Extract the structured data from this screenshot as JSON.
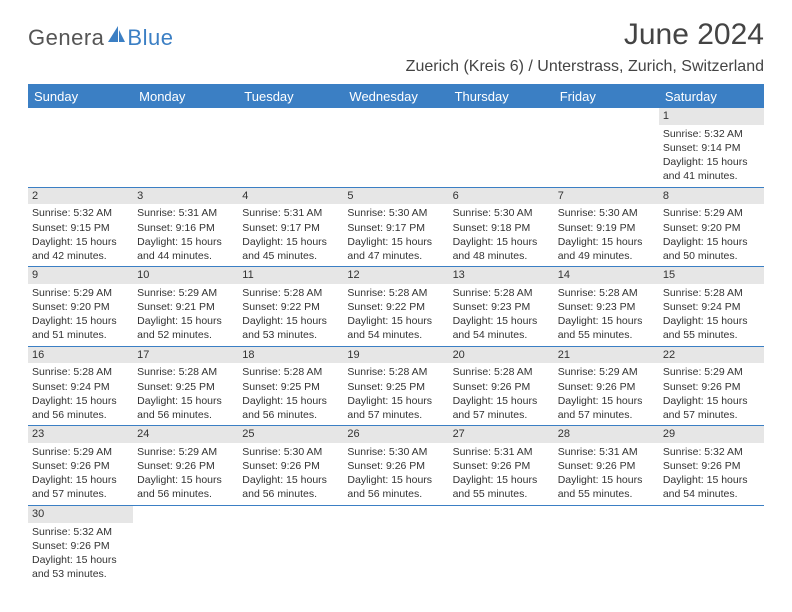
{
  "logo": {
    "text1": "Genera",
    "text2": "Blue",
    "sail_color": "#3b7fc4",
    "text1_color": "#555555"
  },
  "header": {
    "title": "June 2024",
    "location": "Zuerich (Kreis 6) / Unterstrass, Zurich, Switzerland"
  },
  "colors": {
    "header_bg": "#3b7fc4",
    "header_text": "#ffffff",
    "daynum_bg": "#e6e6e6",
    "border": "#3b7fc4",
    "body_text": "#333333"
  },
  "weekdays": [
    "Sunday",
    "Monday",
    "Tuesday",
    "Wednesday",
    "Thursday",
    "Friday",
    "Saturday"
  ],
  "labels": {
    "sunrise": "Sunrise:",
    "sunset": "Sunset:",
    "daylight": "Daylight:"
  },
  "weeks": [
    [
      null,
      null,
      null,
      null,
      null,
      null,
      {
        "n": "1",
        "sr": "5:32 AM",
        "ss": "9:14 PM",
        "dl1": "15 hours",
        "dl2": "and 41 minutes."
      }
    ],
    [
      {
        "n": "2",
        "sr": "5:32 AM",
        "ss": "9:15 PM",
        "dl1": "15 hours",
        "dl2": "and 42 minutes."
      },
      {
        "n": "3",
        "sr": "5:31 AM",
        "ss": "9:16 PM",
        "dl1": "15 hours",
        "dl2": "and 44 minutes."
      },
      {
        "n": "4",
        "sr": "5:31 AM",
        "ss": "9:17 PM",
        "dl1": "15 hours",
        "dl2": "and 45 minutes."
      },
      {
        "n": "5",
        "sr": "5:30 AM",
        "ss": "9:17 PM",
        "dl1": "15 hours",
        "dl2": "and 47 minutes."
      },
      {
        "n": "6",
        "sr": "5:30 AM",
        "ss": "9:18 PM",
        "dl1": "15 hours",
        "dl2": "and 48 minutes."
      },
      {
        "n": "7",
        "sr": "5:30 AM",
        "ss": "9:19 PM",
        "dl1": "15 hours",
        "dl2": "and 49 minutes."
      },
      {
        "n": "8",
        "sr": "5:29 AM",
        "ss": "9:20 PM",
        "dl1": "15 hours",
        "dl2": "and 50 minutes."
      }
    ],
    [
      {
        "n": "9",
        "sr": "5:29 AM",
        "ss": "9:20 PM",
        "dl1": "15 hours",
        "dl2": "and 51 minutes."
      },
      {
        "n": "10",
        "sr": "5:29 AM",
        "ss": "9:21 PM",
        "dl1": "15 hours",
        "dl2": "and 52 minutes."
      },
      {
        "n": "11",
        "sr": "5:28 AM",
        "ss": "9:22 PM",
        "dl1": "15 hours",
        "dl2": "and 53 minutes."
      },
      {
        "n": "12",
        "sr": "5:28 AM",
        "ss": "9:22 PM",
        "dl1": "15 hours",
        "dl2": "and 54 minutes."
      },
      {
        "n": "13",
        "sr": "5:28 AM",
        "ss": "9:23 PM",
        "dl1": "15 hours",
        "dl2": "and 54 minutes."
      },
      {
        "n": "14",
        "sr": "5:28 AM",
        "ss": "9:23 PM",
        "dl1": "15 hours",
        "dl2": "and 55 minutes."
      },
      {
        "n": "15",
        "sr": "5:28 AM",
        "ss": "9:24 PM",
        "dl1": "15 hours",
        "dl2": "and 55 minutes."
      }
    ],
    [
      {
        "n": "16",
        "sr": "5:28 AM",
        "ss": "9:24 PM",
        "dl1": "15 hours",
        "dl2": "and 56 minutes."
      },
      {
        "n": "17",
        "sr": "5:28 AM",
        "ss": "9:25 PM",
        "dl1": "15 hours",
        "dl2": "and 56 minutes."
      },
      {
        "n": "18",
        "sr": "5:28 AM",
        "ss": "9:25 PM",
        "dl1": "15 hours",
        "dl2": "and 56 minutes."
      },
      {
        "n": "19",
        "sr": "5:28 AM",
        "ss": "9:25 PM",
        "dl1": "15 hours",
        "dl2": "and 57 minutes."
      },
      {
        "n": "20",
        "sr": "5:28 AM",
        "ss": "9:26 PM",
        "dl1": "15 hours",
        "dl2": "and 57 minutes."
      },
      {
        "n": "21",
        "sr": "5:29 AM",
        "ss": "9:26 PM",
        "dl1": "15 hours",
        "dl2": "and 57 minutes."
      },
      {
        "n": "22",
        "sr": "5:29 AM",
        "ss": "9:26 PM",
        "dl1": "15 hours",
        "dl2": "and 57 minutes."
      }
    ],
    [
      {
        "n": "23",
        "sr": "5:29 AM",
        "ss": "9:26 PM",
        "dl1": "15 hours",
        "dl2": "and 57 minutes."
      },
      {
        "n": "24",
        "sr": "5:29 AM",
        "ss": "9:26 PM",
        "dl1": "15 hours",
        "dl2": "and 56 minutes."
      },
      {
        "n": "25",
        "sr": "5:30 AM",
        "ss": "9:26 PM",
        "dl1": "15 hours",
        "dl2": "and 56 minutes."
      },
      {
        "n": "26",
        "sr": "5:30 AM",
        "ss": "9:26 PM",
        "dl1": "15 hours",
        "dl2": "and 56 minutes."
      },
      {
        "n": "27",
        "sr": "5:31 AM",
        "ss": "9:26 PM",
        "dl1": "15 hours",
        "dl2": "and 55 minutes."
      },
      {
        "n": "28",
        "sr": "5:31 AM",
        "ss": "9:26 PM",
        "dl1": "15 hours",
        "dl2": "and 55 minutes."
      },
      {
        "n": "29",
        "sr": "5:32 AM",
        "ss": "9:26 PM",
        "dl1": "15 hours",
        "dl2": "and 54 minutes."
      }
    ],
    [
      {
        "n": "30",
        "sr": "5:32 AM",
        "ss": "9:26 PM",
        "dl1": "15 hours",
        "dl2": "and 53 minutes."
      },
      null,
      null,
      null,
      null,
      null,
      null
    ]
  ]
}
